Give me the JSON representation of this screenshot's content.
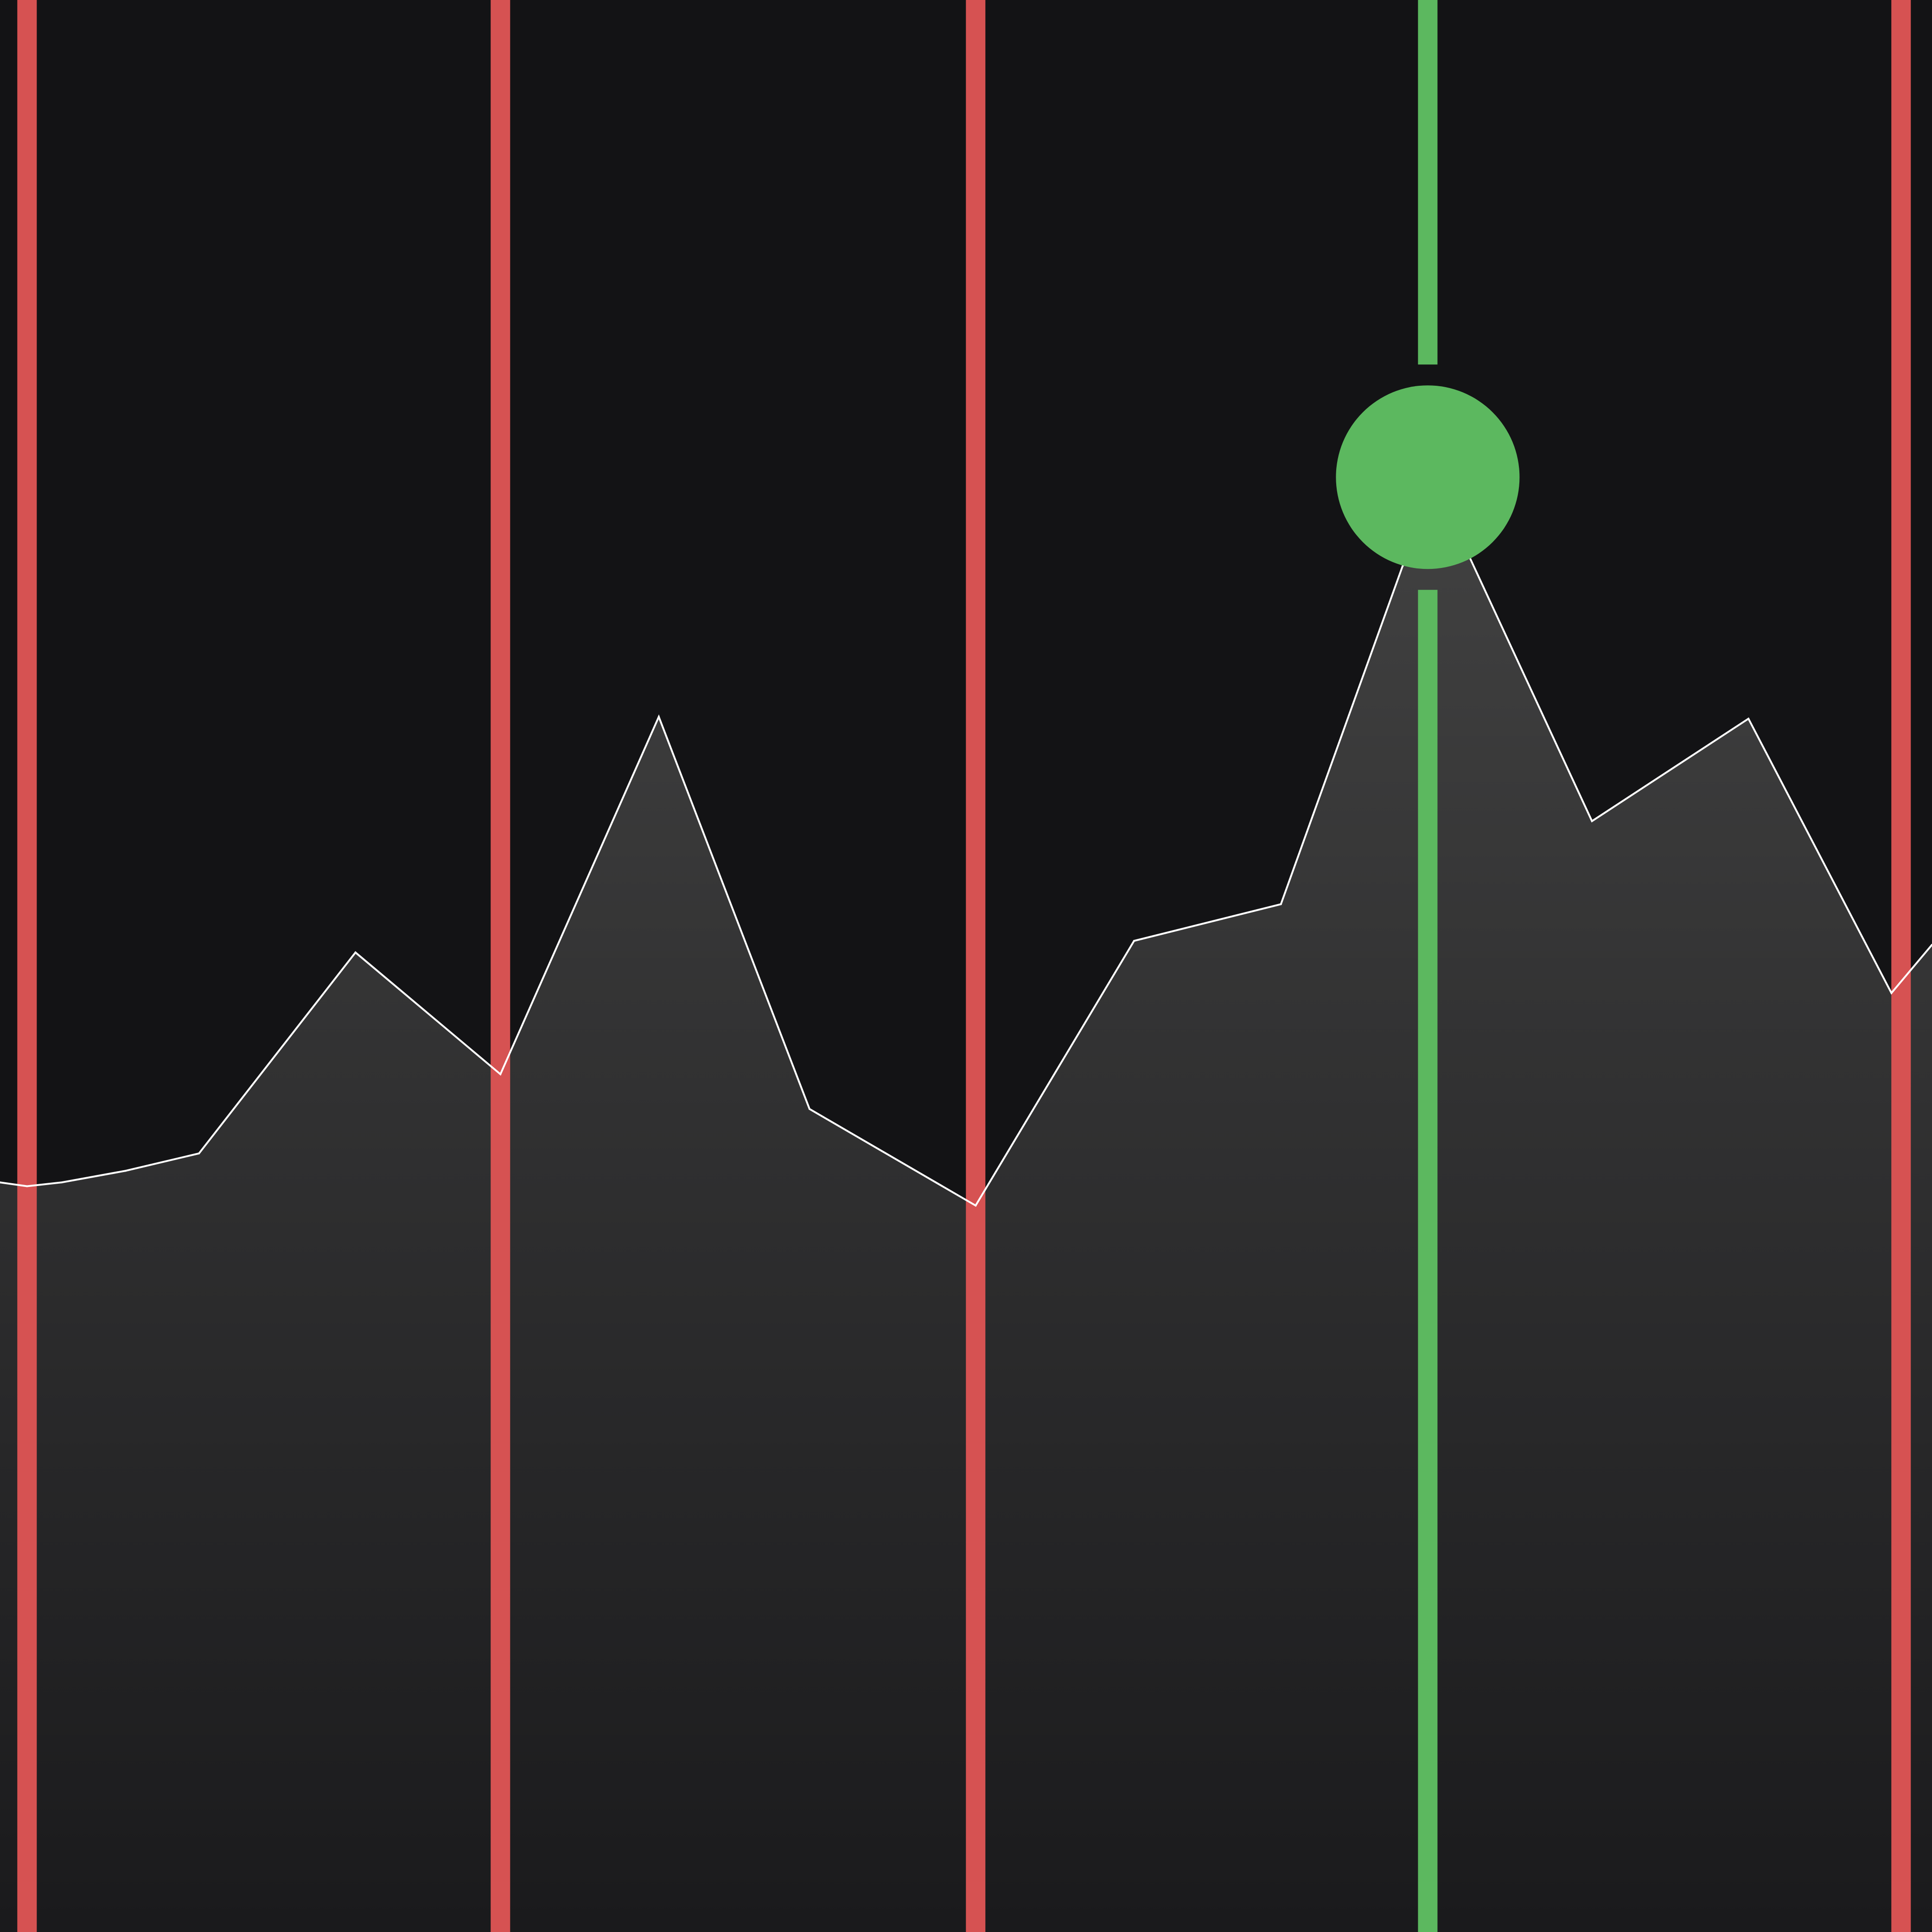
{
  "chart_data": {
    "type": "area",
    "title": "",
    "xlabel": "",
    "ylabel": "",
    "grid": false,
    "legend": "none",
    "xlim": [
      0,
      100
    ],
    "ylim": [
      0,
      100
    ],
    "series": [
      {
        "points": [
          [
            0,
            38.8
          ],
          [
            1.4,
            38.6
          ],
          [
            3.2,
            38.8
          ],
          [
            6.5,
            39.4
          ],
          [
            10.3,
            40.3
          ],
          [
            18.4,
            50.7
          ],
          [
            25.9,
            44.4
          ],
          [
            34.1,
            62.9
          ],
          [
            41.9,
            42.6
          ],
          [
            50.5,
            37.6
          ],
          [
            58.7,
            51.3
          ],
          [
            66.3,
            53.2
          ],
          [
            72.6,
            70.7
          ],
          [
            73.9,
            72.1
          ],
          [
            76.0,
            71.3
          ],
          [
            82.4,
            57.5
          ],
          [
            90.5,
            62.8
          ],
          [
            97.9,
            48.6
          ],
          [
            100,
            51.1
          ]
        ],
        "color": "#ffffff"
      }
    ],
    "markers": {
      "red_lines_x": [
        1.4,
        25.9,
        50.5,
        98.4
      ],
      "green_line_x": 73.9,
      "green_point": [
        73.9,
        75.3
      ]
    }
  },
  "colors": {
    "background": "#131315",
    "area_top": "#404040",
    "area_bottom": "#1a1a1c",
    "line": "#ffffff",
    "red": "#d65252",
    "green": "#5cb85f"
  }
}
